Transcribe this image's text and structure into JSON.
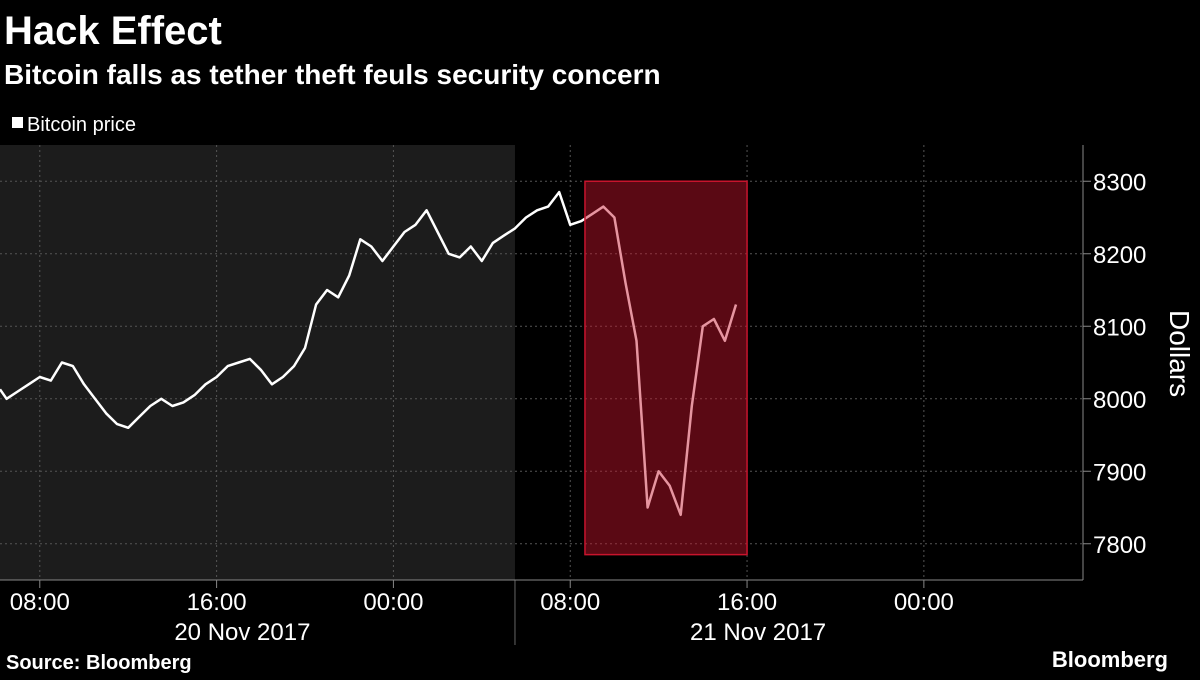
{
  "chart_data": {
    "type": "line",
    "title": "Hack Effect",
    "subtitle": "Bitcoin falls as tether theft feuls security concern",
    "y_label": "Dollars",
    "source": "Source: Bloomberg",
    "brand": "Bloomberg",
    "x": [
      "2017-11-20T06:12",
      "2017-11-20T06:30",
      "2017-11-20T07:00",
      "2017-11-20T07:30",
      "2017-11-20T08:00",
      "2017-11-20T08:30",
      "2017-11-20T09:00",
      "2017-11-20T09:30",
      "2017-11-20T10:00",
      "2017-11-20T10:30",
      "2017-11-20T11:00",
      "2017-11-20T11:30",
      "2017-11-20T12:00",
      "2017-11-20T12:30",
      "2017-11-20T13:00",
      "2017-11-20T13:30",
      "2017-11-20T14:00",
      "2017-11-20T14:30",
      "2017-11-20T15:00",
      "2017-11-20T15:30",
      "2017-11-20T16:00",
      "2017-11-20T16:30",
      "2017-11-20T17:00",
      "2017-11-20T17:30",
      "2017-11-20T18:00",
      "2017-11-20T18:30",
      "2017-11-20T19:00",
      "2017-11-20T19:30",
      "2017-11-20T20:00",
      "2017-11-20T20:30",
      "2017-11-20T21:00",
      "2017-11-20T21:30",
      "2017-11-20T22:00",
      "2017-11-20T22:30",
      "2017-11-20T23:00",
      "2017-11-20T23:30",
      "2017-11-21T00:00",
      "2017-11-21T00:30",
      "2017-11-21T01:00",
      "2017-11-21T01:30",
      "2017-11-21T02:00",
      "2017-11-21T02:30",
      "2017-11-21T03:00",
      "2017-11-21T03:30",
      "2017-11-21T04:00",
      "2017-11-21T04:30",
      "2017-11-21T05:00",
      "2017-11-21T05:30",
      "2017-11-21T06:00",
      "2017-11-21T06:30",
      "2017-11-21T07:00",
      "2017-11-21T07:30",
      "2017-11-21T08:00",
      "2017-11-21T08:30",
      "2017-11-21T09:00",
      "2017-11-21T09:30",
      "2017-11-21T10:00",
      "2017-11-21T10:30",
      "2017-11-21T11:00",
      "2017-11-21T11:30",
      "2017-11-21T12:00",
      "2017-11-21T12:30",
      "2017-11-21T13:00",
      "2017-11-21T13:30",
      "2017-11-21T14:00",
      "2017-11-21T14:30",
      "2017-11-21T15:00",
      "2017-11-21T15:30"
    ],
    "series": [
      {
        "name": "Bitcoin price",
        "color": "#ffffff",
        "values": [
          8013,
          8000,
          8010,
          8020,
          8030,
          8025,
          8050,
          8045,
          8020,
          8000,
          7980,
          7965,
          7960,
          7975,
          7990,
          8000,
          7990,
          7995,
          8005,
          8020,
          8030,
          8045,
          8050,
          8055,
          8040,
          8020,
          8030,
          8045,
          8070,
          8130,
          8150,
          8140,
          8170,
          8220,
          8210,
          8190,
          8210,
          8230,
          8240,
          8260,
          8230,
          8200,
          8195,
          8210,
          8190,
          8215,
          8225,
          8235,
          8250,
          8260,
          8265,
          8285,
          8240,
          8245,
          8255,
          8265,
          8250,
          8160,
          8080,
          7850,
          7900,
          7880,
          7840,
          7990,
          8100,
          8110,
          8080,
          8130
        ]
      }
    ],
    "xlim": [
      "2017-11-20T06:12",
      "2017-11-22T07:12"
    ],
    "xticks": [
      {
        "value": "2017-11-20T08:00",
        "label": "08:00"
      },
      {
        "value": "2017-11-20T16:00",
        "label": "16:00"
      },
      {
        "value": "2017-11-21T00:00",
        "label": "00:00"
      },
      {
        "value": "2017-11-21T08:00",
        "label": "08:00"
      },
      {
        "value": "2017-11-21T16:00",
        "label": "16:00"
      },
      {
        "value": "2017-11-22T00:00",
        "label": "00:00"
      }
    ],
    "x_groups": [
      {
        "label": "20 Nov 2017",
        "center": "2017-11-20T17:10"
      },
      {
        "label": "21 Nov 2017",
        "center": "2017-11-21T16:30"
      }
    ],
    "day_divider": "2017-11-21T05:30",
    "ylim": [
      7750,
      8350
    ],
    "yticks": [
      7800,
      7900,
      8000,
      8100,
      8200,
      8300
    ],
    "grid": true,
    "highlight": {
      "x": [
        "2017-11-21T08:40",
        "2017-11-21T16:00"
      ],
      "y": [
        7785,
        8300
      ],
      "color": "#c8142d"
    }
  }
}
